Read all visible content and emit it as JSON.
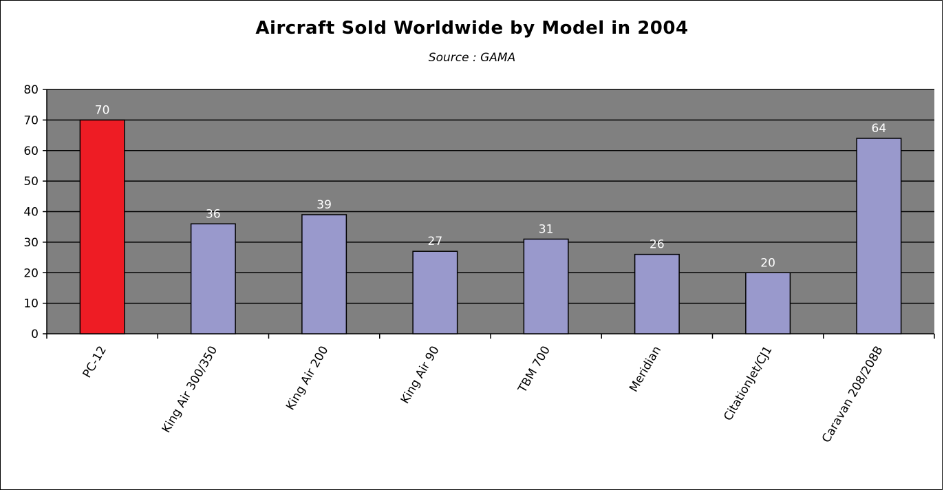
{
  "chart_data": {
    "type": "bar",
    "title": "Aircraft Sold Worldwide by Model in 2004",
    "subtitle": "Source : GAMA",
    "xlabel": "",
    "ylabel": "",
    "categories": [
      "PC-12",
      "King Air 300/350",
      "King Air 200",
      "King Air 90",
      "TBM 700",
      "Meridian",
      "CitationJet/CJ1",
      "Caravan 208/208B"
    ],
    "values": [
      70,
      36,
      39,
      27,
      31,
      26,
      20,
      64
    ],
    "highlight_category": "PC-12",
    "ylim": [
      0,
      80
    ],
    "ytick_step": 10,
    "grid": true,
    "legend": "none",
    "data_labels": true,
    "colors": {
      "plot_background": "#808080",
      "bar_default": "#9999cc",
      "bar_highlight": "#ee1c24",
      "gridline": "#000000",
      "data_label": "#ffffff"
    }
  }
}
